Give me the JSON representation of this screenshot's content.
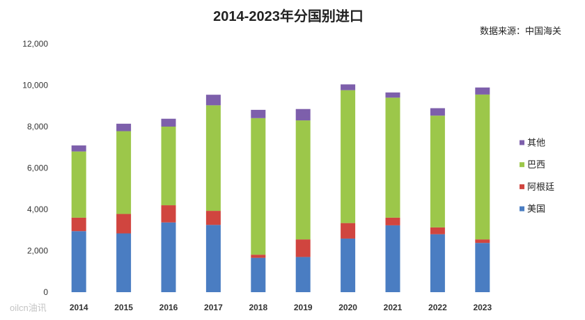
{
  "watermark": "oilcn油讯",
  "chart_data": {
    "type": "bar",
    "stacked": true,
    "title": "2014-2023年分国别进口",
    "source": "数据来源：中国海关",
    "categories": [
      "2014",
      "2015",
      "2016",
      "2017",
      "2018",
      "2019",
      "2020",
      "2021",
      "2022",
      "2023"
    ],
    "series": [
      {
        "name": "美国",
        "color": "#4a7dc2",
        "values": [
          2950,
          2840,
          3370,
          3250,
          1660,
          1700,
          2590,
          3230,
          2800,
          2380
        ]
      },
      {
        "name": "阿根廷",
        "color": "#d0453f",
        "values": [
          650,
          940,
          830,
          680,
          150,
          850,
          750,
          370,
          330,
          170
        ]
      },
      {
        "name": "巴西",
        "color": "#9cc74a",
        "values": [
          3200,
          4000,
          3800,
          5100,
          6600,
          5750,
          6420,
          5800,
          5400,
          7000
        ]
      },
      {
        "name": "其他",
        "color": "#7d5fab",
        "values": [
          290,
          360,
          380,
          510,
          400,
          550,
          280,
          250,
          360,
          340
        ]
      }
    ],
    "ylim": [
      0,
      12000
    ],
    "yticks": [
      0,
      2000,
      4000,
      6000,
      8000,
      10000,
      12000
    ],
    "yticklabels": [
      "0",
      "2,000",
      "4,000",
      "6,000",
      "8,000",
      "10,000",
      "12,000"
    ],
    "grid": false,
    "legend": "right"
  }
}
